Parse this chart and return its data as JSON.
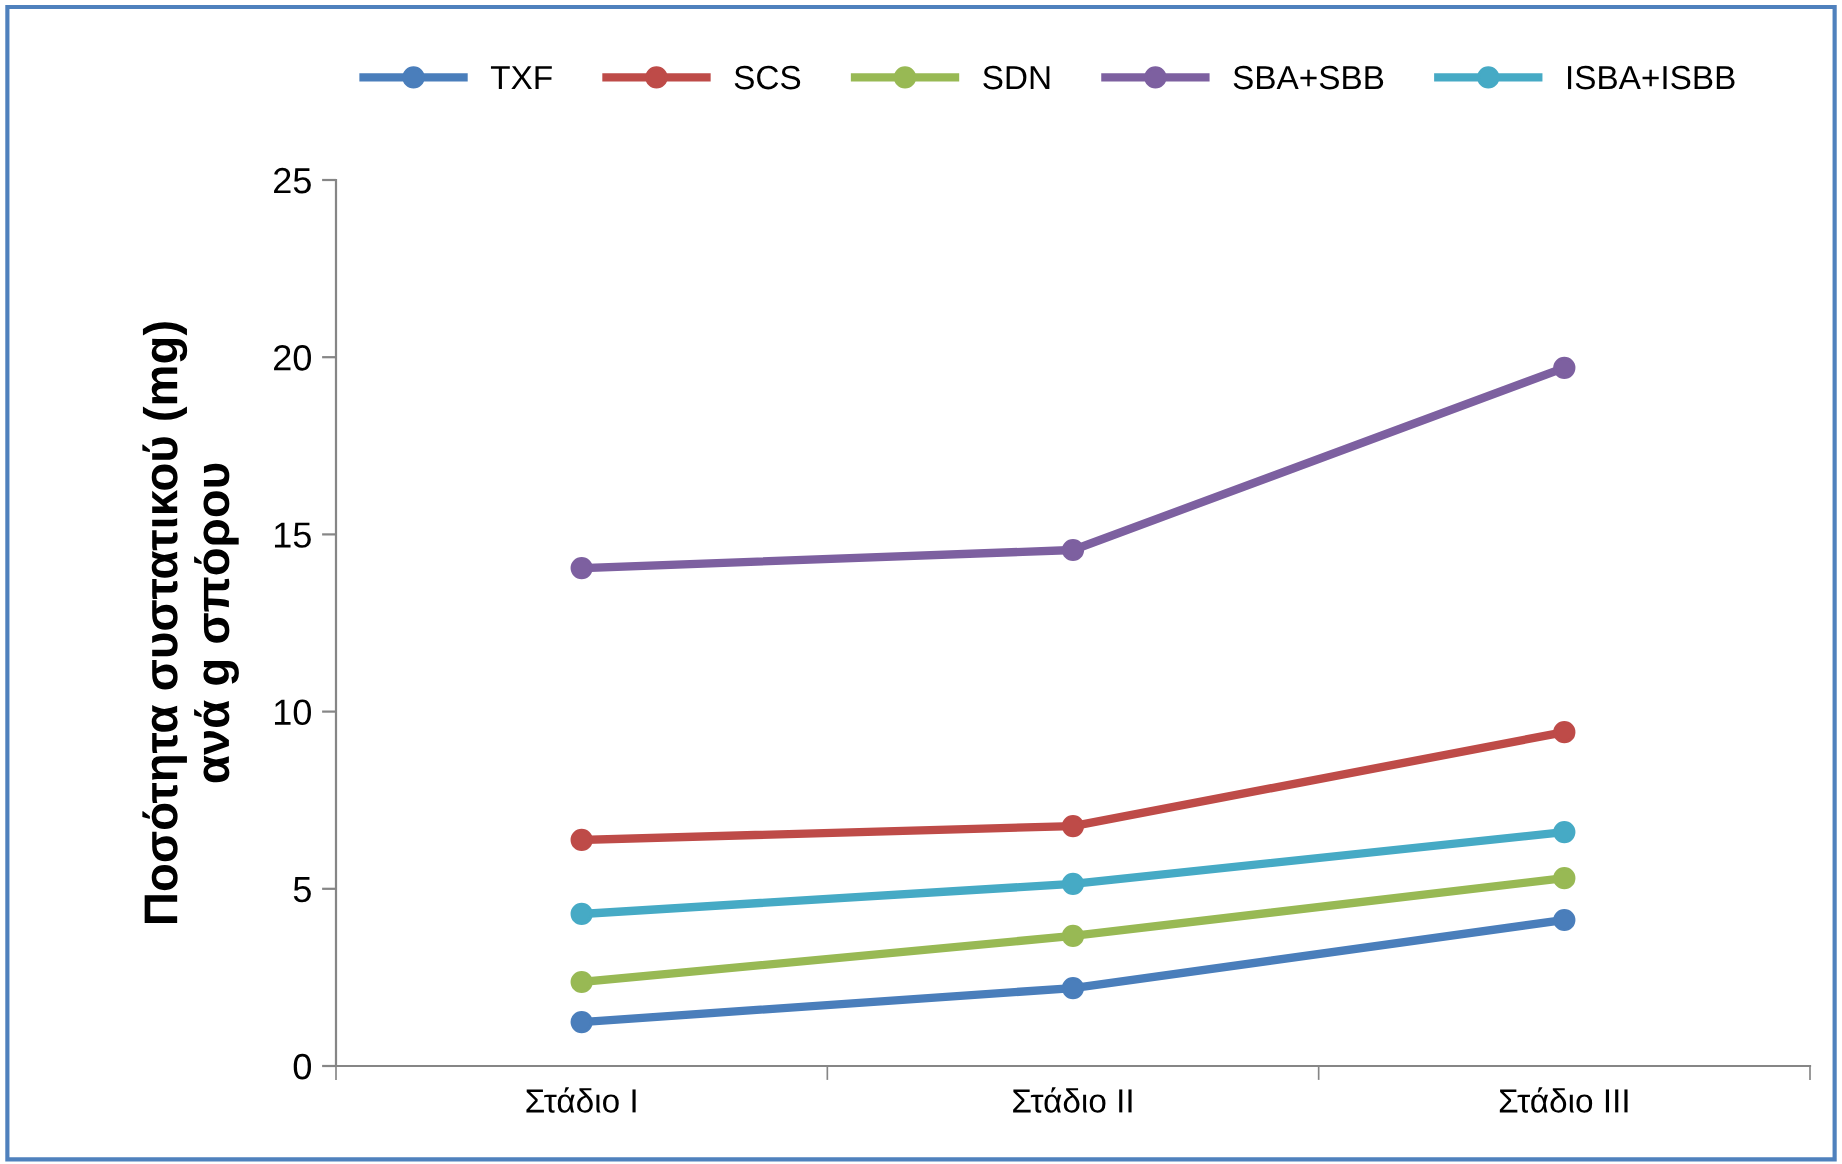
{
  "chart_data": {
    "type": "line",
    "ylabel": "Ποσότητα συστατικού (mg)\nανά g σπόρου",
    "categories": [
      "Στάδιο I",
      "Στάδιο II",
      "Στάδιο III"
    ],
    "series": [
      {
        "name": "TXF",
        "color": "#4a7ebb",
        "values": [
          1.24,
          2.2,
          4.12
        ]
      },
      {
        "name": "SCS",
        "color": "#be4b48",
        "values": [
          6.38,
          6.77,
          9.42
        ]
      },
      {
        "name": "SDN",
        "color": "#98b954",
        "values": [
          2.37,
          3.67,
          5.3
        ]
      },
      {
        "name": "SBA+SBB",
        "color": "#7d60a0",
        "values": [
          14.05,
          14.56,
          19.7
        ]
      },
      {
        "name": "ISBA+ISBB",
        "color": "#46aac5",
        "values": [
          4.29,
          5.14,
          6.6
        ]
      }
    ],
    "ylim": [
      0,
      25
    ],
    "yticks": [
      0,
      5,
      10,
      15,
      20,
      25
    ],
    "grid": false,
    "legend": "top",
    "marker": "circle",
    "line_style": "solid"
  }
}
